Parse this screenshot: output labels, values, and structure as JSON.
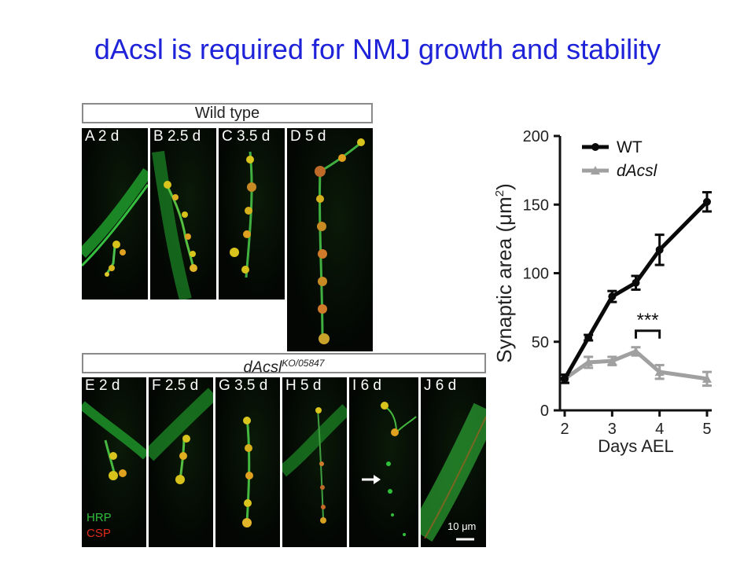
{
  "title": "dAcsl is required for NMJ growth and stability",
  "figure": {
    "wt_group_label": "Wild type",
    "mutant_group_label": "dAcsl",
    "mutant_group_sup": "KO/05847",
    "wt_panels": [
      {
        "letter": "A",
        "time": "2 d"
      },
      {
        "letter": "B",
        "time": "2.5 d"
      },
      {
        "letter": "C",
        "time": "3.5 d"
      },
      {
        "letter": "D",
        "time": "5 d"
      }
    ],
    "mutant_panels": [
      {
        "letter": "E",
        "time": "2 d"
      },
      {
        "letter": "F",
        "time": "2.5 d"
      },
      {
        "letter": "G",
        "time": "3.5 d"
      },
      {
        "letter": "H",
        "time": "5 d"
      },
      {
        "letter": "I",
        "time": "6 d"
      },
      {
        "letter": "J",
        "time": "6 d"
      }
    ],
    "stain_legend": [
      {
        "label": "HRP",
        "color": "#2fbf3a"
      },
      {
        "label": "CSP",
        "color": "#e02a1a"
      }
    ],
    "scale_bar_label": "10 μm"
  },
  "chart_data": {
    "type": "line",
    "xlabel": "Days AEL",
    "ylabel": "Synaptic area (μm²)",
    "ylabel_parts": {
      "main": "Synaptic area (μm",
      "sup": "2",
      "close": ")"
    },
    "xlim": [
      1.9,
      5.1
    ],
    "ylim": [
      0,
      200
    ],
    "x_ticks": [
      2,
      3,
      4,
      5
    ],
    "y_ticks": [
      0,
      50,
      100,
      150,
      200
    ],
    "series": [
      {
        "name": "WT",
        "color": "#0a0a0a",
        "marker": "circle",
        "x": [
          2,
          2.5,
          3,
          3.5,
          4,
          5
        ],
        "y": [
          23,
          53,
          83,
          93,
          117,
          152
        ],
        "err": [
          3,
          2,
          4,
          5,
          11,
          7
        ]
      },
      {
        "name": "dAcsl",
        "color": "#a0a0a0",
        "marker": "triangle",
        "x": [
          2,
          2.5,
          3,
          3.5,
          4,
          5
        ],
        "y": [
          23,
          35,
          36,
          43,
          28,
          23
        ],
        "err": [
          3,
          4,
          3,
          3,
          5,
          5
        ]
      }
    ],
    "annotation": {
      "text": "***",
      "x_range": [
        3.5,
        4
      ]
    },
    "legend_position": "top-left"
  }
}
